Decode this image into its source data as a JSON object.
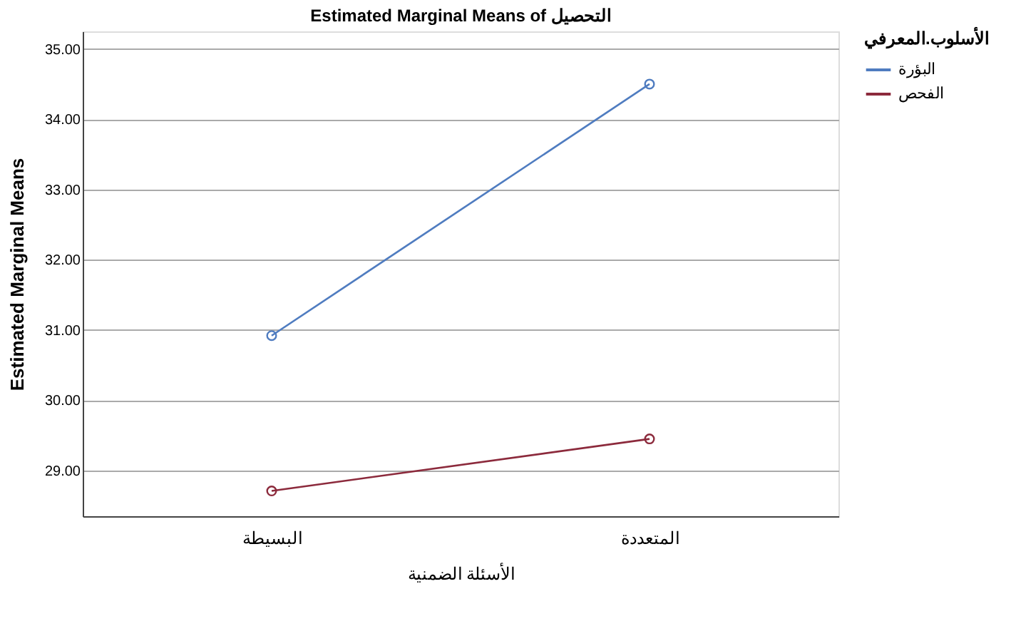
{
  "chart_data": {
    "type": "line",
    "title": "Estimated Marginal Means of التحصيل",
    "xlabel": "الأسئلة الضمنية",
    "ylabel": "Estimated Marginal Means",
    "legend_title": "الأسلوب.المعرفي",
    "categories": [
      "البسيطة",
      "المتعددة"
    ],
    "series": [
      {
        "name": "البؤرة",
        "color": "#4f7cc0",
        "values": [
          30.92,
          34.5
        ]
      },
      {
        "name": "الفحص",
        "color": "#8c2a3c",
        "values": [
          28.71,
          29.45
        ]
      }
    ],
    "ylim": [
      28.35,
      35.25
    ],
    "yticks": [
      {
        "value": 29,
        "label": "29.00"
      },
      {
        "value": 30,
        "label": "30.00"
      },
      {
        "value": 31,
        "label": "31.00"
      },
      {
        "value": 32,
        "label": "32.00"
      },
      {
        "value": 33,
        "label": "33.00"
      },
      {
        "value": 34,
        "label": "34.00"
      },
      {
        "value": 35,
        "label": "35.00"
      }
    ],
    "grid": "y",
    "legend": "top right",
    "marker": "circle",
    "line_style": "solid"
  }
}
